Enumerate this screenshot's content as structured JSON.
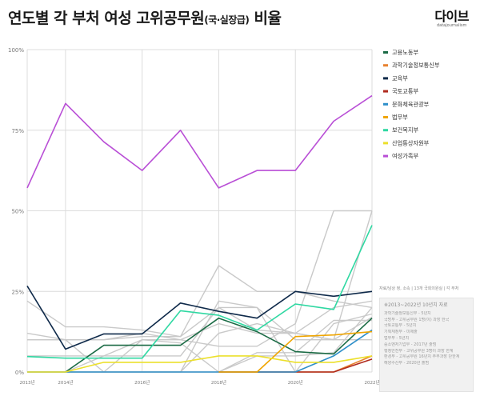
{
  "header": {
    "title_main": "연도별 각 부처 여성 고위공무원",
    "title_sub": "(국·실장급)",
    "title_end": " 비율",
    "logo_text": "다이브",
    "logo_url": "datajournalism"
  },
  "source_text": "자료/남상 정, 소속 | 13개 국회의원실 | 각 부처",
  "note": {
    "heading": "※2013~2022년 10년치 자료",
    "lines": [
      "과학기술정보통신부 - 5년치",
      "국방부 - 고위공무원 1명(이) 과장 한국",
      "국토교통부 - 5년치",
      "기획재정부 - 미제출",
      "법무부 - 5년치",
      "중소벤처기업부 - 2017년 출범",
      "행정안전부 - 고위공무원 3명이 과장 한계",
      "환경부 - 고위공무원 16년치 주무과장 단한계",
      "해양수산부 - 2020년 출범"
    ]
  },
  "chart_data": {
    "type": "line",
    "x": [
      2013,
      2014,
      2015,
      2016,
      2017,
      2018,
      2019,
      2020,
      2021,
      2022
    ],
    "xtick_labels": [
      "2013년",
      "2014년",
      "2016년",
      "2018년",
      "2020년",
      "2022년"
    ],
    "xtick_values": [
      2013,
      2014,
      2016,
      2018,
      2020,
      2022
    ],
    "ylim": [
      0,
      100
    ],
    "yticks": [
      0,
      25,
      50,
      75,
      100
    ],
    "ytick_labels": [
      "0%",
      "25%",
      "50%",
      "75%",
      "100%"
    ],
    "grid": true,
    "legend_position": "right",
    "series": [
      {
        "name": "고용노동부",
        "color": "#1b6b45",
        "values": [
          null,
          0,
          8.3,
          8.3,
          8.3,
          16.7,
          12.5,
          6.3,
          5.6,
          16.7
        ]
      },
      {
        "name": "과학기술정보통신부",
        "color": "#e8822f",
        "values": [
          null,
          null,
          null,
          null,
          null,
          0,
          0,
          0,
          0,
          5
        ]
      },
      {
        "name": "교육부",
        "color": "#0f2a4a",
        "values": [
          26.7,
          7.1,
          11.8,
          11.8,
          21.4,
          18.8,
          16.7,
          25,
          23.5,
          25
        ]
      },
      {
        "name": "국토교통부",
        "color": "#b02a1e",
        "values": [
          null,
          null,
          null,
          null,
          null,
          0,
          0,
          0,
          0,
          4
        ]
      },
      {
        "name": "문화체육관광부",
        "color": "#2e8fc9",
        "values": [
          0,
          0,
          0,
          0,
          0,
          0,
          0,
          0,
          5,
          13
        ]
      },
      {
        "name": "법무부",
        "color": "#f0a500",
        "values": [
          null,
          null,
          null,
          null,
          null,
          0,
          0,
          11,
          11.5,
          12.5
        ]
      },
      {
        "name": "보건복지부",
        "color": "#2fd8a2",
        "values": [
          4.8,
          4.3,
          4.3,
          4.3,
          19.0,
          17.6,
          13.0,
          21.1,
          19.4,
          45.5
        ]
      },
      {
        "name": "산업통상자원부",
        "color": "#ece02c",
        "values": [
          0,
          0,
          3,
          3,
          3,
          5,
          5,
          3,
          3,
          5
        ]
      },
      {
        "name": "여성가족부",
        "color": "#b94fd6",
        "values": [
          57.1,
          83.3,
          71.4,
          62.5,
          75,
          57.1,
          62.5,
          62.5,
          77.8,
          85.7
        ]
      }
    ],
    "background_series": [
      [
        22,
        14,
        14,
        13,
        11,
        33,
        25,
        25,
        22,
        20
      ],
      [
        12,
        10,
        10,
        11,
        11,
        20,
        20,
        10,
        10,
        10
      ],
      [
        10,
        10,
        10,
        12,
        10,
        15,
        12,
        12,
        20,
        22
      ],
      [
        0,
        0,
        5,
        10,
        10,
        8,
        8,
        15,
        50,
        50
      ],
      [
        0,
        0,
        0,
        0,
        0,
        12,
        15,
        12,
        10,
        50
      ],
      [
        10,
        10,
        0,
        0,
        0,
        22,
        20,
        0,
        15,
        18
      ],
      [
        null,
        null,
        null,
        null,
        0,
        0,
        6,
        6,
        16,
        16
      ],
      [
        0,
        0,
        0,
        10,
        9,
        0,
        5,
        5,
        6,
        20
      ],
      [
        5,
        5,
        5,
        5,
        5,
        20,
        13,
        12,
        10,
        17
      ]
    ]
  }
}
